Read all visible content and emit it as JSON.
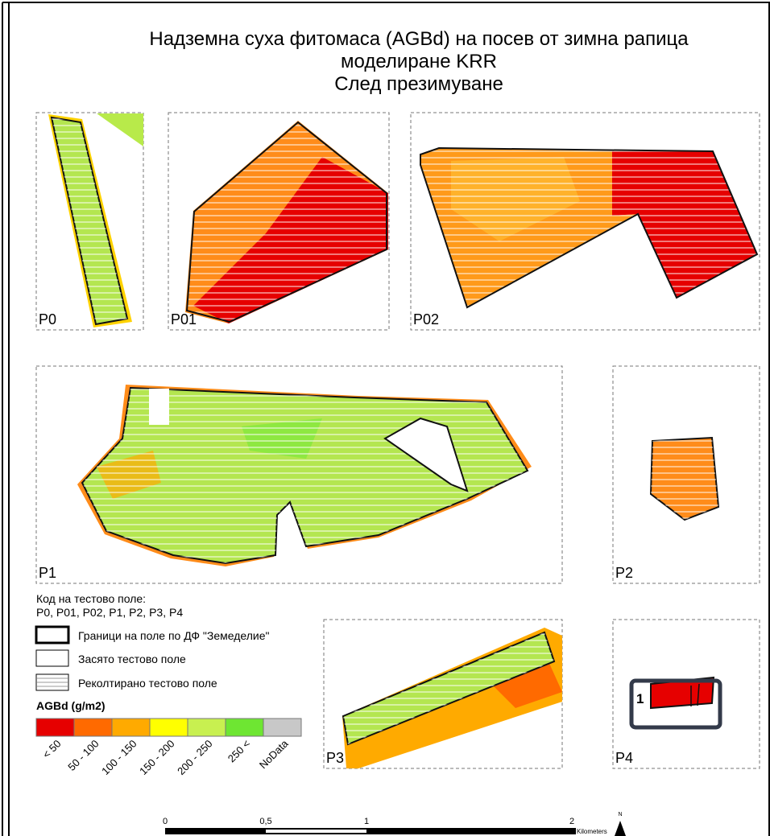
{
  "title": [
    "Надземна суха фитомаса (AGBd) на посев от зимна рапица",
    "моделиране KRR",
    "След презимуване"
  ],
  "panels": [
    "P0",
    "P01",
    "P02",
    "P1",
    "P2",
    "P3",
    "P4"
  ],
  "legend": {
    "code_title": "Код на тестово поле:",
    "codes": "P0, P01, P02, P1, P2, P3, P4",
    "items": [
      "Граници на поле по ДФ \"Земеделие\"",
      "Засято тестово поле",
      "Реколтирано тестово поле"
    ],
    "agbd_title": "AGBd (g/m2)",
    "classes": [
      {
        "label": "< 50",
        "color": "#e60000"
      },
      {
        "label": "50 - 100",
        "color": "#ff6a00"
      },
      {
        "label": "100 - 150",
        "color": "#ffaa00"
      },
      {
        "label": "150 - 200",
        "color": "#ffff00"
      },
      {
        "label": "200 - 250",
        "color": "#c8f050"
      },
      {
        "label": "250 <",
        "color": "#6ee632"
      },
      {
        "label": "NoData",
        "color": "#c8c8c8"
      }
    ]
  },
  "marker": "1",
  "scale": {
    "ticks": [
      "0",
      "0,5",
      "1",
      "2"
    ],
    "unit": "Kilometers"
  },
  "north": "N"
}
